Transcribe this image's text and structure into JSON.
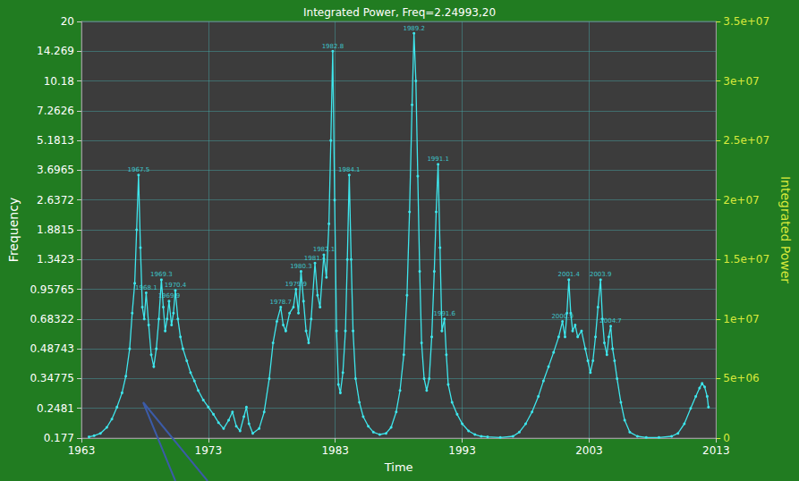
{
  "chart_data": {
    "type": "line",
    "title": "Integrated Power, Freq=2.24993,20",
    "x_label": "Time",
    "y_label": "Frequency",
    "y2_label": "Integrated Power",
    "log": "y",
    "grid": true,
    "xlim": [
      1963,
      2013
    ],
    "xticks": [
      1963,
      1973,
      1983,
      1993,
      2003,
      2013
    ],
    "ylim": [
      0.177,
      20
    ],
    "yticks": [
      0.177,
      0.2481,
      0.34775,
      0.48743,
      0.68322,
      0.95765,
      1.3423,
      1.8815,
      2.6372,
      3.6965,
      5.1813,
      7.2626,
      10.18,
      14.269,
      20
    ],
    "y2lim": [
      0,
      35000000
    ],
    "y2ticks": [
      0,
      {
        "value": 5000000,
        "label": "5e+06"
      },
      {
        "value": 10000000,
        "label": "1e+07"
      },
      {
        "value": 15000000,
        "label": "1.5e+07"
      },
      {
        "value": 20000000,
        "label": "2e+07"
      },
      {
        "value": 25000000,
        "label": "2.5e+07"
      },
      {
        "value": 30000000,
        "label": "3e+07"
      },
      {
        "value": 35000000,
        "label": "3.5e+07"
      }
    ],
    "x": [
      1963.6,
      1964.0,
      1964.5,
      1965.0,
      1965.4,
      1965.8,
      1966.2,
      1966.5,
      1966.8,
      1967.0,
      1967.2,
      1967.35,
      1967.5,
      1967.65,
      1967.8,
      1967.95,
      1968.1,
      1968.3,
      1968.5,
      1968.7,
      1968.9,
      1969.1,
      1969.3,
      1969.45,
      1969.6,
      1969.75,
      1969.9,
      1970.1,
      1970.25,
      1970.4,
      1970.6,
      1970.8,
      1971.0,
      1971.3,
      1971.6,
      1971.9,
      1972.2,
      1972.6,
      1973.0,
      1973.4,
      1973.8,
      1974.2,
      1974.6,
      1974.9,
      1975.2,
      1975.5,
      1975.8,
      1976.0,
      1976.2,
      1976.5,
      1977.0,
      1977.4,
      1977.8,
      1978.1,
      1978.4,
      1978.7,
      1978.9,
      1979.1,
      1979.4,
      1979.7,
      1979.9,
      1980.1,
      1980.3,
      1980.5,
      1980.7,
      1980.9,
      1981.1,
      1981.4,
      1981.6,
      1981.8,
      1982.1,
      1982.3,
      1982.5,
      1982.65,
      1982.8,
      1982.95,
      1983.1,
      1983.25,
      1983.4,
      1983.6,
      1983.8,
      1983.95,
      1984.1,
      1984.25,
      1984.4,
      1984.6,
      1984.9,
      1985.2,
      1985.6,
      1986.0,
      1986.5,
      1987.0,
      1987.4,
      1987.8,
      1988.1,
      1988.4,
      1988.65,
      1988.85,
      1989.05,
      1989.2,
      1989.35,
      1989.5,
      1989.65,
      1989.8,
      1990.0,
      1990.2,
      1990.4,
      1990.6,
      1990.8,
      1990.95,
      1991.1,
      1991.25,
      1991.4,
      1991.6,
      1991.75,
      1991.9,
      1992.2,
      1992.6,
      1993.0,
      1993.5,
      1994.0,
      1994.5,
      1995.0,
      1996.0,
      1997.0,
      1997.5,
      1998.0,
      1998.5,
      1999.0,
      1999.4,
      1999.8,
      2000.2,
      2000.6,
      2000.9,
      2001.1,
      2001.25,
      2001.4,
      2001.55,
      2001.7,
      2001.9,
      2002.1,
      2002.4,
      2002.7,
      2002.9,
      2003.1,
      2003.3,
      2003.5,
      2003.7,
      2003.9,
      2004.05,
      2004.2,
      2004.4,
      2004.55,
      2004.7,
      2004.85,
      2005.0,
      2005.2,
      2005.5,
      2005.8,
      2006.2,
      2006.8,
      2007.5,
      2008.5,
      2009.5,
      2010.0,
      2010.5,
      2011.0,
      2011.4,
      2011.7,
      2011.9,
      2012.1,
      2012.3,
      2012.4
    ],
    "series": [
      {
        "color": "#3ee6ec",
        "axis": "y2",
        "marker": "circle",
        "line_style": "solid",
        "values": [
          100000,
          200000,
          400000,
          900000,
          1600000,
          2600000,
          3800000,
          5200000,
          7500000,
          10500000,
          13000000,
          17500000,
          22100000,
          16000000,
          11000000,
          10000000,
          12200000,
          9500000,
          7000000,
          6000000,
          7500000,
          10000000,
          13300000,
          11000000,
          9000000,
          10000000,
          11500000,
          9500000,
          10500000,
          12400000,
          10000000,
          8500000,
          7500000,
          6500000,
          5500000,
          4800000,
          4000000,
          3200000,
          2600000,
          2000000,
          1300000,
          800000,
          1500000,
          2200000,
          1000000,
          600000,
          1800000,
          2600000,
          1200000,
          400000,
          800000,
          2200000,
          5000000,
          8000000,
          9800000,
          11000000,
          9500000,
          9000000,
          10500000,
          11000000,
          12500000,
          10500000,
          14000000,
          11500000,
          9000000,
          8000000,
          10000000,
          14700000,
          12000000,
          11000000,
          15400000,
          13500000,
          18000000,
          25000000,
          32500000,
          20000000,
          9000000,
          4500000,
          3800000,
          5500000,
          9000000,
          15000000,
          22100000,
          15000000,
          9000000,
          5000000,
          3000000,
          1800000,
          1000000,
          500000,
          300000,
          400000,
          900000,
          2200000,
          4000000,
          7000000,
          12000000,
          19000000,
          28000000,
          34000000,
          30000000,
          22000000,
          14000000,
          8000000,
          5000000,
          4000000,
          5000000,
          8500000,
          14000000,
          19000000,
          23000000,
          16000000,
          9000000,
          10000000,
          7000000,
          4500000,
          3000000,
          2000000,
          1200000,
          600000,
          300000,
          150000,
          100000,
          50000,
          150000,
          500000,
          1200000,
          2200000,
          3500000,
          4800000,
          6000000,
          7200000,
          8500000,
          9800000,
          8500000,
          10500000,
          13300000,
          10500000,
          9000000,
          9500000,
          8500000,
          9000000,
          7500000,
          6500000,
          5500000,
          6500000,
          8500000,
          11000000,
          13300000,
          10000000,
          8000000,
          7000000,
          8500000,
          9400000,
          7500000,
          6500000,
          5000000,
          3000000,
          1500000,
          500000,
          150000,
          50000,
          50000,
          150000,
          400000,
          1200000,
          2500000,
          3500000,
          4200000,
          4600000,
          4300000,
          3500000,
          2600000
        ]
      }
    ],
    "annotations": [
      {
        "x": 1967.5,
        "y": 22100000,
        "text": "1967.5"
      },
      {
        "x": 1968.1,
        "y": 12200000,
        "text": "1968.1"
      },
      {
        "x": 1969.3,
        "y": 13300000,
        "text": "1969.3"
      },
      {
        "x": 1969.9,
        "y": 11500000,
        "text": "1969.9"
      },
      {
        "x": 1970.4,
        "y": 12400000,
        "text": "1970.4"
      },
      {
        "x": 1978.7,
        "y": 11000000,
        "text": "1978.7"
      },
      {
        "x": 1979.9,
        "y": 12500000,
        "text": "1979.9"
      },
      {
        "x": 1980.3,
        "y": 14000000,
        "text": "1980.3"
      },
      {
        "x": 1981.4,
        "y": 14700000,
        "text": "1981.4"
      },
      {
        "x": 1982.1,
        "y": 15400000,
        "text": "1982.1"
      },
      {
        "x": 1982.8,
        "y": 32500000,
        "text": "1982.8"
      },
      {
        "x": 1984.1,
        "y": 22100000,
        "text": "1984.1"
      },
      {
        "x": 1989.2,
        "y": 34000000,
        "text": "1989.2"
      },
      {
        "x": 1991.1,
        "y": 23000000,
        "text": "1991.1"
      },
      {
        "x": 1991.6,
        "y": 10000000,
        "text": "1991.6"
      },
      {
        "x": 2000.9,
        "y": 9800000,
        "text": "2000.9"
      },
      {
        "x": 2001.4,
        "y": 13300000,
        "text": "2001.4"
      },
      {
        "x": 2003.9,
        "y": 13300000,
        "text": "2003.9"
      },
      {
        "x": 2004.7,
        "y": 9400000,
        "text": "2004.7"
      }
    ]
  }
}
